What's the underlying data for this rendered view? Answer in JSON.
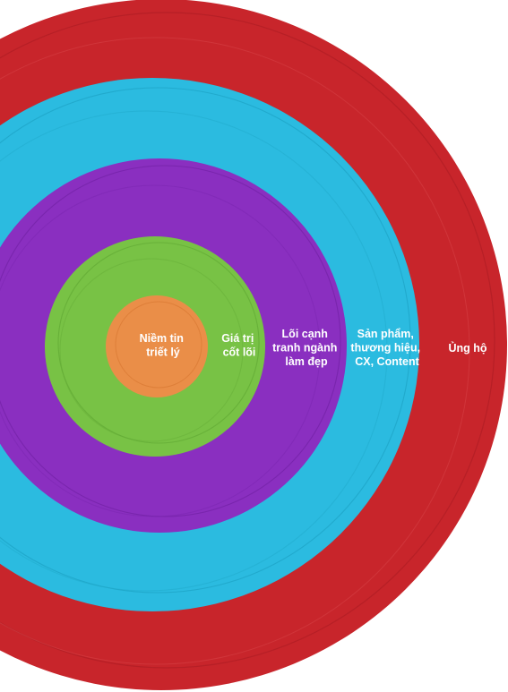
{
  "diagram": {
    "rings": [
      {
        "id": "ung-ho",
        "lines": [
          "Ủng hộ"
        ],
        "color": "#c8252b"
      },
      {
        "id": "san-pham",
        "lines": [
          "Sản phẩm,",
          "thương hiệu,",
          "CX, Content"
        ],
        "color": "#2bbbe0"
      },
      {
        "id": "loi-canh-tranh",
        "lines": [
          "Lõi cạnh",
          "tranh ngành",
          "làm đẹp"
        ],
        "color": "#8a2fc0"
      },
      {
        "id": "gia-tri",
        "lines": [
          "Giá trị",
          "cốt lõi"
        ],
        "color": "#78c245"
      },
      {
        "id": "niem-tin",
        "lines": [
          "Niềm tin",
          "triết lý"
        ],
        "color": "#ea8e48"
      }
    ]
  }
}
